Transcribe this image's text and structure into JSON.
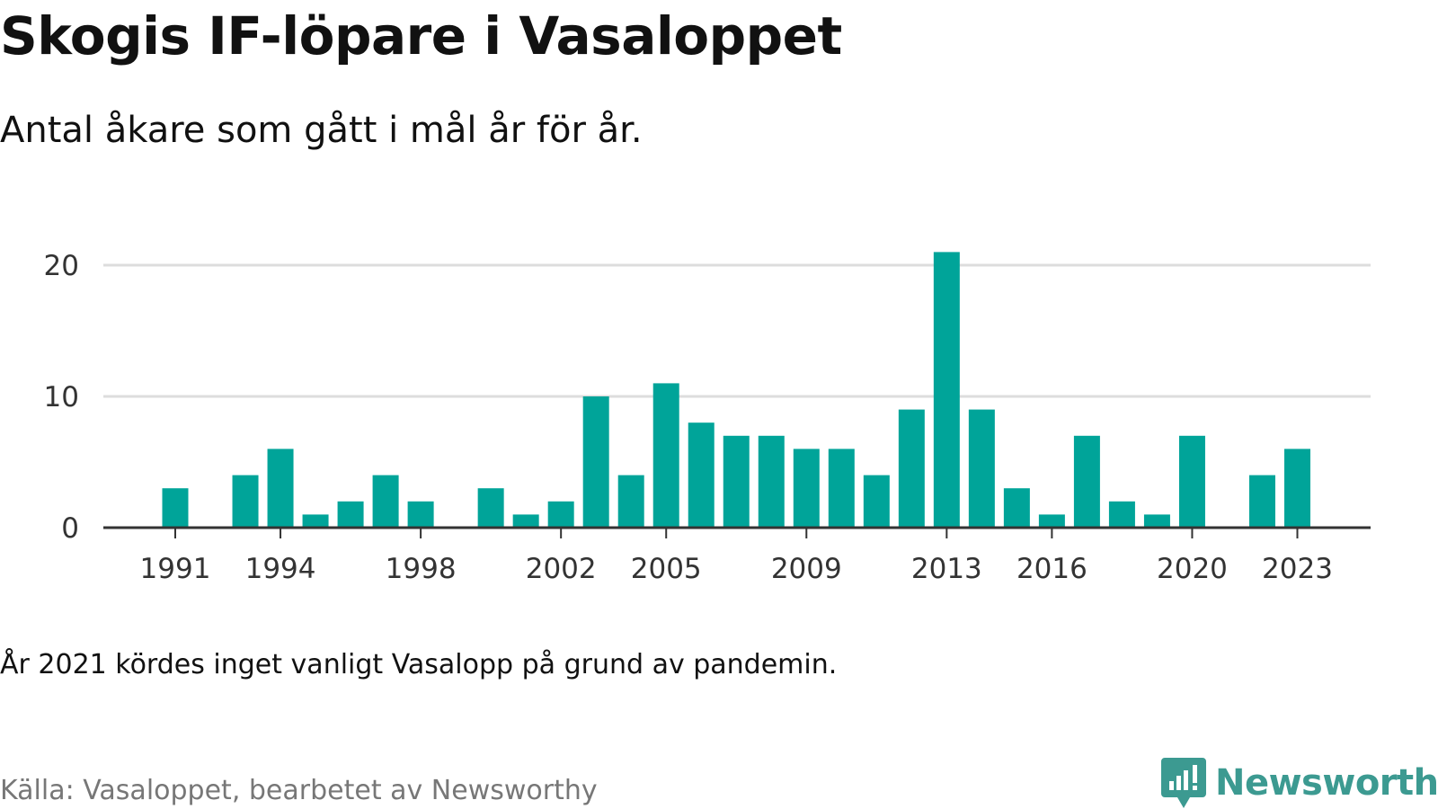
{
  "title": "Skogis IF-löpare i Vasaloppet",
  "subtitle": "Antal åkare som gått i mål år för år.",
  "note": "År 2021 kördes inget vanligt Vasalopp på grund av pandemin.",
  "source": "Källa: Vasaloppet, bearbetet av Newsworthy",
  "logo": {
    "text": "Newsworthy",
    "icon": "newsworthy-logo-icon",
    "color": "#3c9a91"
  },
  "colors": {
    "bar": "#00a499",
    "grid": "#dddddd",
    "axis": "#333333"
  },
  "chart_data": {
    "type": "bar",
    "title": "Skogis IF-löpare i Vasaloppet",
    "xlabel": "",
    "ylabel": "",
    "x_range": [
      1989,
      2025
    ],
    "ylim": [
      0,
      21
    ],
    "yticks": [
      0,
      10,
      20
    ],
    "xticks": [
      1991,
      1994,
      1998,
      2002,
      2005,
      2009,
      2013,
      2016,
      2020,
      2023
    ],
    "grid": true,
    "categories": [
      1991,
      1993,
      1994,
      1995,
      1996,
      1997,
      1998,
      2000,
      2001,
      2002,
      2003,
      2004,
      2005,
      2006,
      2007,
      2008,
      2009,
      2010,
      2011,
      2012,
      2013,
      2014,
      2015,
      2016,
      2017,
      2018,
      2019,
      2020,
      2022,
      2023
    ],
    "values": [
      3,
      4,
      6,
      1,
      2,
      4,
      2,
      3,
      1,
      2,
      10,
      4,
      11,
      8,
      7,
      7,
      6,
      6,
      4,
      9,
      21,
      9,
      3,
      1,
      7,
      2,
      1,
      7,
      4,
      6
    ]
  }
}
